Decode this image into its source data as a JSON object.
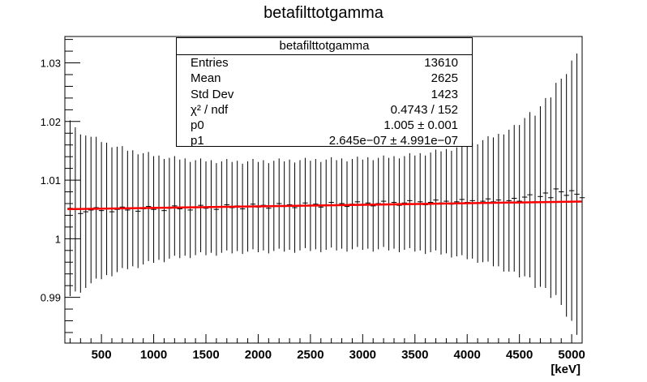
{
  "chart_data": {
    "type": "scatter",
    "title": "betafilttotgamma",
    "xlabel": "[keV]",
    "ylabel": "",
    "xlim": [
      150,
      5100
    ],
    "ylim": [
      0.9822,
      1.0345
    ],
    "x_ticks": [
      500,
      1000,
      1500,
      2000,
      2500,
      3000,
      3500,
      4000,
      4500,
      5000
    ],
    "x_tick_labels": [
      "500",
      "1000",
      "1500",
      "2000",
      "2500",
      "3000",
      "3500",
      "4000",
      "4500",
      "5000"
    ],
    "y_ticks": [
      0.99,
      1.0,
      1.01,
      1.02,
      1.03
    ],
    "y_tick_labels": [
      "0.99",
      "1",
      "1.01",
      "1.02",
      "1.03"
    ],
    "grid": false,
    "points": {
      "name": "betafilttotgamma",
      "color": "#000000",
      "x_start": 200,
      "x_step": 50,
      "values": [
        1.0052,
        1.005,
        1.0043,
        1.0046,
        1.0049,
        1.0053,
        1.0048,
        1.0051,
        1.0046,
        1.005,
        1.0054,
        1.0049,
        1.0052,
        1.0047,
        1.0051,
        1.0055,
        1.005,
        1.0053,
        1.0048,
        1.0052,
        1.0056,
        1.0051,
        1.0054,
        1.0049,
        1.0053,
        1.0057,
        1.0052,
        1.0055,
        1.005,
        1.0054,
        1.0058,
        1.0053,
        1.0056,
        1.0051,
        1.0055,
        1.0059,
        1.0054,
        1.0057,
        1.0052,
        1.0056,
        1.006,
        1.0055,
        1.0058,
        1.0053,
        1.0057,
        1.0061,
        1.0056,
        1.0059,
        1.0054,
        1.0058,
        1.0062,
        1.0057,
        1.006,
        1.0055,
        1.0059,
        1.0063,
        1.0058,
        1.0061,
        1.0056,
        1.006,
        1.0064,
        1.0059,
        1.0062,
        1.0057,
        1.0061,
        1.0065,
        1.006,
        1.0063,
        1.0058,
        1.0062,
        1.0066,
        1.0061,
        1.0064,
        1.0059,
        1.0063,
        1.0067,
        1.0062,
        1.0065,
        1.006,
        1.0064,
        1.0068,
        1.0063,
        1.0066,
        1.0061,
        1.0065,
        1.0069,
        1.0064,
        1.0071,
        1.0075,
        1.0063,
        1.0072,
        1.0078,
        1.007,
        1.0085,
        1.008,
        1.0074,
        1.0082,
        1.0076,
        1.007
      ],
      "errors": [
        0.015,
        0.014,
        0.0135,
        0.013,
        0.0125,
        0.0121,
        0.0117,
        0.0113,
        0.011,
        0.0107,
        0.0104,
        0.0101,
        0.0099,
        0.0097,
        0.0095,
        0.0093,
        0.0091,
        0.0089,
        0.0088,
        0.0086,
        0.0085,
        0.0084,
        0.0083,
        0.0082,
        0.0081,
        0.008,
        0.008,
        0.0079,
        0.0079,
        0.0078,
        0.0078,
        0.0078,
        0.0077,
        0.0077,
        0.0077,
        0.0077,
        0.0077,
        0.0077,
        0.0077,
        0.0077,
        0.0077,
        0.0077,
        0.0077,
        0.0077,
        0.0077,
        0.0077,
        0.0077,
        0.0077,
        0.0077,
        0.0077,
        0.0077,
        0.0077,
        0.0077,
        0.0077,
        0.0077,
        0.0077,
        0.0077,
        0.0078,
        0.0078,
        0.0078,
        0.0078,
        0.0079,
        0.0079,
        0.008,
        0.008,
        0.0081,
        0.0082,
        0.0083,
        0.0084,
        0.0085,
        0.0086,
        0.0088,
        0.0089,
        0.0091,
        0.0093,
        0.0095,
        0.0097,
        0.0099,
        0.0101,
        0.0104,
        0.0107,
        0.011,
        0.0113,
        0.0117,
        0.0121,
        0.0125,
        0.013,
        0.0135,
        0.0141,
        0.0147,
        0.0154,
        0.0162,
        0.0171,
        0.0181,
        0.0193,
        0.0207,
        0.0222,
        0.024,
        0.026
      ]
    },
    "fit": {
      "name": "pol1",
      "color": "#ff0000",
      "p0": 1.005,
      "p1": 2.645e-07
    }
  },
  "stats_box": {
    "title": "betafilttotgamma",
    "rows": [
      {
        "key": "Entries",
        "value": "13610"
      },
      {
        "key": "Mean",
        "value": "2625"
      },
      {
        "key": "Std Dev",
        "value": "1423"
      },
      {
        "key": "χ² / ndf",
        "value": "0.4743 / 152"
      },
      {
        "key": "p0",
        "value": "1.005 ± 0.001"
      },
      {
        "key": "p1",
        "value": "2.645e−07 ± 4.991e−07"
      }
    ]
  }
}
